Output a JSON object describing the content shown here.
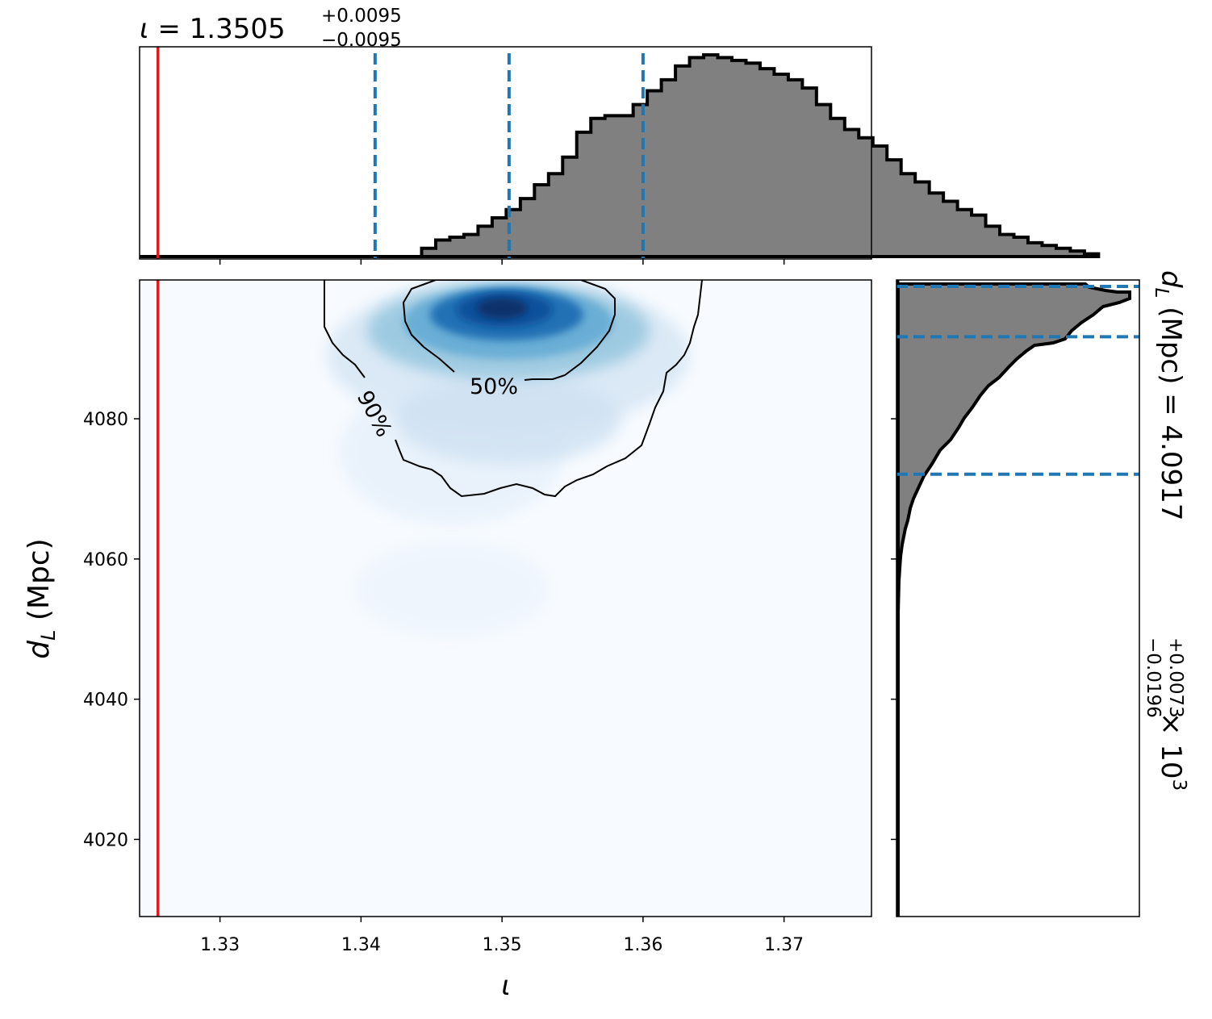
{
  "chart_data": [
    {
      "type": "histogram",
      "panel": "top-marginal",
      "title_param": "ι",
      "title_value": "1.3505",
      "title_plus": "+0.0095",
      "title_minus": "−0.0095",
      "variable": "ι",
      "xlim": [
        1.3243,
        1.3762
      ],
      "quantile_lines": [
        1.341,
        1.3505,
        1.36
      ],
      "true_value": 1.3256,
      "bin_edges_start": 1.3443,
      "bin_width": 0.001,
      "counts": [
        0.03,
        0.06,
        0.07,
        0.08,
        0.11,
        0.14,
        0.17,
        0.21,
        0.26,
        0.3,
        0.36,
        0.45,
        0.5,
        0.51,
        0.51,
        0.55,
        0.6,
        0.64,
        0.69,
        0.72,
        0.73,
        0.72,
        0.71,
        0.7,
        0.68,
        0.66,
        0.64,
        0.61,
        0.55,
        0.5,
        0.46,
        0.43,
        0.4,
        0.35,
        0.3,
        0.27,
        0.23,
        0.2,
        0.17,
        0.15,
        0.11,
        0.08,
        0.07,
        0.05,
        0.04,
        0.03,
        0.02,
        0.01
      ]
    },
    {
      "type": "heatmap",
      "panel": "joint",
      "xlabel": "ι",
      "ylabel_main": "d",
      "ylabel_sub": "L",
      "ylabel_unit": " (Mpc)",
      "xlim": [
        1.3243,
        1.3762
      ],
      "ylim": [
        4009,
        4099.8
      ],
      "xticks": [
        "1.33",
        "1.34",
        "1.35",
        "1.36",
        "1.37"
      ],
      "xtick_values": [
        1.33,
        1.34,
        1.35,
        1.36,
        1.37
      ],
      "yticks": [
        "4020",
        "4040",
        "4060",
        "4080"
      ],
      "ytick_values": [
        4020,
        4040,
        4060,
        4080
      ],
      "colormap": "Blues",
      "peak": [
        1.35,
        4095
      ],
      "true_value_x": 1.3256,
      "contour_labels": [
        "50%",
        "90%"
      ],
      "contour_levels": [
        0.5,
        0.9
      ]
    },
    {
      "type": "histogram",
      "panel": "right-marginal",
      "variable": "d_L (Mpc)",
      "label_value": "4.0917",
      "label_plus": "+0.0073",
      "label_minus": "−0.0196",
      "label_multiplier": "× 10",
      "label_exponent": "3",
      "ylim": [
        4009,
        4099.8
      ],
      "quantile_lines": [
        4072.1,
        4091.7,
        4099
      ]
    }
  ],
  "colors": {
    "hist_fill": "#808080",
    "hist_edge": "#000000",
    "quantile": "#1f77b4",
    "truth": "#e31a1c",
    "heat_low": "#f7fbff",
    "heat_high": "#08306b"
  }
}
